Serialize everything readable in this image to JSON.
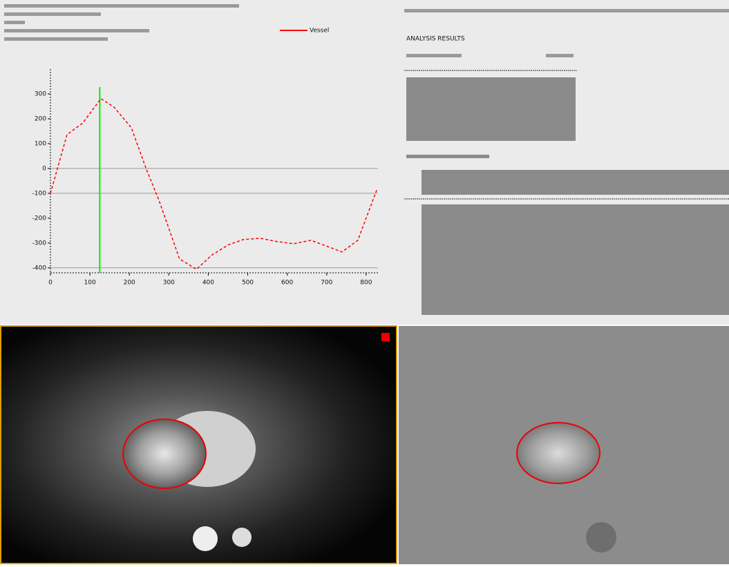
{
  "chart_data": {
    "type": "line",
    "x": [
      0,
      42,
      82,
      128,
      161,
      205,
      243,
      275,
      327,
      370,
      408,
      450,
      489,
      532,
      573,
      616,
      660,
      739,
      779,
      827
    ],
    "series": [
      {
        "name": "Vessel",
        "color": "#ff0000",
        "values": [
          -100,
          136,
          183,
          281,
          247,
          164,
          -3,
          -128,
          -364,
          -406,
          -350,
          -308,
          -286,
          -281,
          -294,
          -303,
          -289,
          -336,
          -289,
          -86
        ]
      }
    ],
    "xlim": [
      0,
      830
    ],
    "xticks": [
      0,
      100,
      200,
      300,
      400,
      500,
      600,
      700,
      800
    ],
    "ylim": [
      -420,
      400
    ],
    "yticks": [
      300,
      200,
      100,
      0,
      -100,
      -200,
      -300,
      -400
    ],
    "grid_lines": [
      0,
      -100,
      -400
    ],
    "marker_x": 125,
    "marker_color": "#00ee00"
  },
  "results": {
    "title": "ANALYSIS RESULTS"
  }
}
